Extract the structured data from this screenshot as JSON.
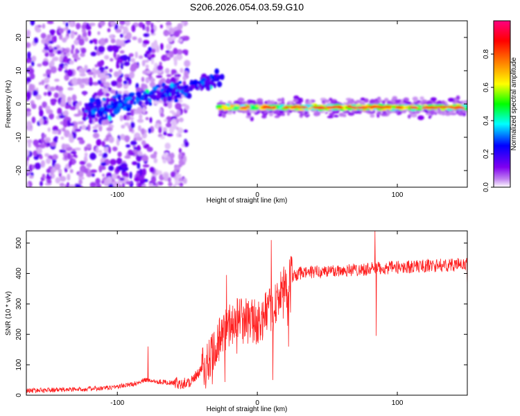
{
  "title": "S206.2026.054.03.59.G10",
  "chart_data": [
    {
      "type": "heatmap",
      "title": "S206.2026.054.03.59.G10",
      "xlabel": "Height of straight line (km)",
      "ylabel": "Frequency (Hz)",
      "xlim": [
        -165,
        150
      ],
      "ylim": [
        -25,
        25
      ],
      "xticks": [
        -100,
        0,
        100
      ],
      "xtick_labels": [
        "-100",
        "0",
        "100"
      ],
      "yticks": [
        -20,
        -10,
        0,
        10,
        20
      ],
      "ytick_labels": [
        "-20",
        "-10",
        "0",
        "10",
        "20"
      ],
      "colorbar": {
        "label": "Normalized spectral amplitude",
        "range": [
          0,
          1
        ],
        "ticks": [
          0.0,
          0.2,
          0.4,
          0.6,
          0.8
        ],
        "tick_labels": [
          "0.0",
          "0.2",
          "0.4",
          "0.6",
          "0.8"
        ],
        "colormap": [
          "#ffffff",
          "#c080f0",
          "#8000f0",
          "#0000ff",
          "#00ffff",
          "#00ff00",
          "#ffff00",
          "#ff8000",
          "#ff0000",
          "#ff0080"
        ]
      },
      "features": [
        {
          "name": "scattered noise",
          "x_range": [
            -165,
            -50
          ],
          "freq_range": [
            -25,
            25
          ],
          "amplitude": "0.05-0.3"
        },
        {
          "name": "rising trace",
          "x_range": [
            -125,
            -25
          ],
          "freq_from": -3,
          "freq_to": 8,
          "amplitude": "0.2-0.5"
        },
        {
          "name": "carrier line",
          "x_range": [
            -27,
            150
          ],
          "freq": -1,
          "amplitude": "0.5-1.0"
        }
      ]
    },
    {
      "type": "line",
      "xlabel": "Height of straight line (km)",
      "ylabel": "SNR (10 * v/v)",
      "xlim": [
        -165,
        150
      ],
      "ylim": [
        0,
        540
      ],
      "xticks": [
        -100,
        0,
        100
      ],
      "xtick_labels": [
        "-100",
        "0",
        "100"
      ],
      "yticks": [
        0,
        100,
        200,
        300,
        400,
        500
      ],
      "ytick_labels": [
        "0",
        "100",
        "200",
        "300",
        "400",
        "500"
      ],
      "color": "#ff2020",
      "series": [
        {
          "name": "SNR",
          "x": [
            -165,
            -140,
            -110,
            -90,
            -80,
            -70,
            -60,
            -50,
            -45,
            -40,
            -35,
            -30,
            -25,
            -20,
            -15,
            -10,
            -5,
            0,
            5,
            10,
            15,
            20,
            25,
            30,
            40,
            60,
            80,
            100,
            120,
            150
          ],
          "values": [
            15,
            18,
            22,
            35,
            50,
            45,
            40,
            40,
            55,
            80,
            120,
            170,
            200,
            230,
            250,
            255,
            245,
            240,
            260,
            280,
            320,
            360,
            390,
            400,
            405,
            410,
            415,
            420,
            425,
            430
          ],
          "spikes": [
            {
              "x": -78,
              "y": 160
            },
            {
              "x": -22,
              "y": 395
            },
            {
              "x": 10,
              "y": 510
            },
            {
              "x": 11,
              "y": 50
            },
            {
              "x": 84,
              "y": 540
            },
            {
              "x": 85,
              "y": 195
            },
            {
              "x": 150,
              "y": 350
            }
          ]
        }
      ]
    }
  ]
}
